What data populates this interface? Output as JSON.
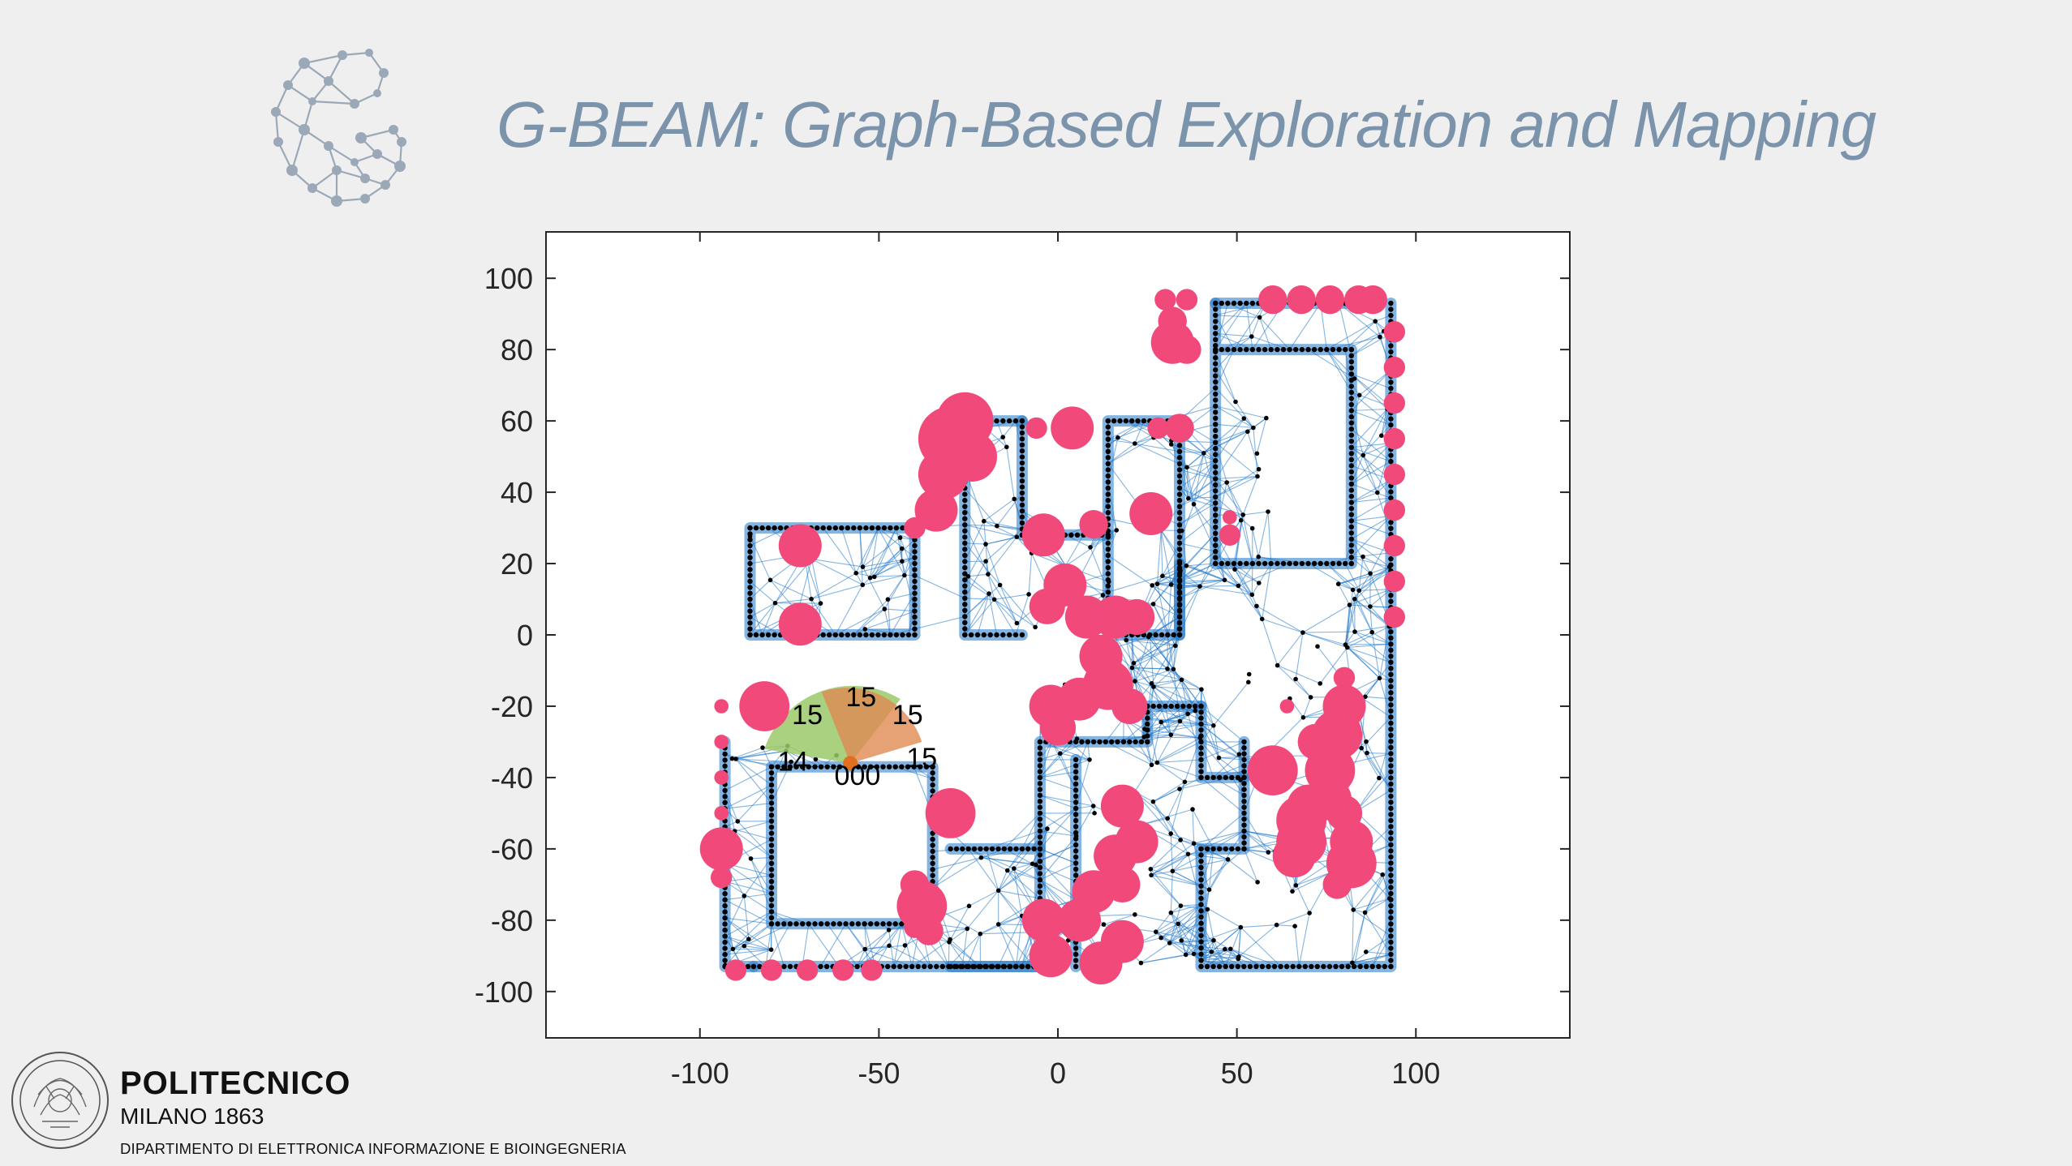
{
  "slide": {
    "title": "G-BEAM: Graph-Based Exploration and Mapping"
  },
  "colors": {
    "title": "#7b93ab",
    "graph_edges": "#1f77c8",
    "frontier_circles": "#f0497a",
    "obstacle_nodes": "#000000",
    "robot_sector": "#9ac96a",
    "robot_sector_orange": "#e08a52"
  },
  "chart_data": {
    "type": "scatter",
    "title": "",
    "xlabel": "",
    "ylabel": "",
    "xlim": [
      -143,
      143
    ],
    "ylim": [
      -113,
      113
    ],
    "xticks": [
      -100,
      -50,
      0,
      50,
      100
    ],
    "yticks": [
      100,
      80,
      60,
      40,
      20,
      0,
      -20,
      -40,
      -60,
      -80,
      -100
    ],
    "grid": false,
    "series": [
      {
        "kind": "walls",
        "polylines": [
          [
            [
              -86,
              30
            ],
            [
              -86,
              0
            ],
            [
              -40,
              0
            ],
            [
              -40,
              30
            ],
            [
              -86,
              30
            ]
          ],
          [
            [
              -26,
              60
            ],
            [
              -26,
              0
            ],
            [
              -10,
              0
            ]
          ],
          [
            [
              -10,
              60
            ],
            [
              -26,
              60
            ]
          ],
          [
            [
              -10,
              60
            ],
            [
              -10,
              28
            ],
            [
              14,
              28
            ]
          ],
          [
            [
              14,
              60
            ],
            [
              14,
              0
            ],
            [
              34,
              0
            ],
            [
              34,
              60
            ],
            [
              14,
              60
            ]
          ],
          [
            [
              44,
              93
            ],
            [
              44,
              20
            ],
            [
              82,
              20
            ],
            [
              82,
              80
            ],
            [
              44,
              80
            ]
          ],
          [
            [
              82,
              93
            ],
            [
              44,
              93
            ]
          ],
          [
            [
              34,
              20
            ],
            [
              34,
              0
            ]
          ],
          [
            [
              -93,
              -30
            ],
            [
              -93,
              -93
            ],
            [
              -85,
              -93
            ]
          ],
          [
            [
              -80,
              -37
            ],
            [
              -80,
              -81
            ],
            [
              -35,
              -81
            ],
            [
              -35,
              -37
            ],
            [
              -80,
              -37
            ]
          ],
          [
            [
              -30,
              -60
            ],
            [
              -5,
              -60
            ],
            [
              -5,
              -93
            ],
            [
              -85,
              -93
            ]
          ],
          [
            [
              -5,
              -60
            ],
            [
              -5,
              -30
            ],
            [
              25,
              -30
            ],
            [
              25,
              -20
            ],
            [
              40,
              -20
            ]
          ],
          [
            [
              5,
              -35
            ],
            [
              5,
              -93
            ]
          ],
          [
            [
              40,
              -20
            ],
            [
              40,
              -40
            ],
            [
              52,
              -40
            ],
            [
              52,
              -60
            ],
            [
              40,
              -60
            ],
            [
              40,
              -93
            ],
            [
              93,
              -93
            ],
            [
              93,
              93
            ]
          ],
          [
            [
              52,
              -40
            ],
            [
              52,
              -30
            ]
          ],
          [
            [
              -30,
              -93
            ],
            [
              -5,
              -93
            ]
          ]
        ]
      },
      {
        "kind": "frontier_circles",
        "points": [
          [
            30,
            94,
            3
          ],
          [
            36,
            94,
            3
          ],
          [
            32,
            88,
            4
          ],
          [
            32,
            82,
            6
          ],
          [
            36,
            80,
            4
          ],
          [
            60,
            94,
            4
          ],
          [
            68,
            94,
            4
          ],
          [
            76,
            94,
            4
          ],
          [
            84,
            94,
            4
          ],
          [
            88,
            94,
            4
          ],
          [
            94,
            85,
            3
          ],
          [
            94,
            75,
            3
          ],
          [
            94,
            65,
            3
          ],
          [
            94,
            55,
            3
          ],
          [
            94,
            45,
            3
          ],
          [
            94,
            35,
            3
          ],
          [
            94,
            25,
            3
          ],
          [
            94,
            15,
            3
          ],
          [
            94,
            5,
            3
          ],
          [
            -26,
            60,
            8
          ],
          [
            -30,
            55,
            9
          ],
          [
            -24,
            50,
            7
          ],
          [
            -32,
            45,
            7
          ],
          [
            -34,
            35,
            6
          ],
          [
            -40,
            30,
            3
          ],
          [
            -72,
            25,
            6
          ],
          [
            -72,
            3,
            6
          ],
          [
            -6,
            58,
            3
          ],
          [
            4,
            58,
            6
          ],
          [
            28,
            58,
            3
          ],
          [
            34,
            58,
            4
          ],
          [
            26,
            34,
            6
          ],
          [
            48,
            28,
            3
          ],
          [
            48,
            33,
            2
          ],
          [
            -4,
            28,
            6
          ],
          [
            10,
            31,
            4
          ],
          [
            2,
            14,
            6
          ],
          [
            -3,
            8,
            5
          ],
          [
            8,
            5,
            6
          ],
          [
            16,
            5,
            6
          ],
          [
            22,
            5,
            5
          ],
          [
            12,
            -6,
            6
          ],
          [
            14,
            -14,
            7
          ],
          [
            6,
            -18,
            6
          ],
          [
            -2,
            -20,
            6
          ],
          [
            0,
            -26,
            5
          ],
          [
            20,
            -20,
            5
          ],
          [
            -82,
            -20,
            7
          ],
          [
            -94,
            -20,
            2
          ],
          [
            -94,
            -30,
            2
          ],
          [
            -94,
            -40,
            2
          ],
          [
            -94,
            -50,
            2
          ],
          [
            -94,
            -60,
            6
          ],
          [
            -94,
            -68,
            3
          ],
          [
            -30,
            -50,
            7
          ],
          [
            -40,
            -70,
            4
          ],
          [
            -38,
            -76,
            7
          ],
          [
            -40,
            -82,
            3
          ],
          [
            -36,
            -83,
            4
          ],
          [
            -90,
            -94,
            3
          ],
          [
            -80,
            -94,
            3
          ],
          [
            -70,
            -94,
            3
          ],
          [
            -60,
            -94,
            3
          ],
          [
            -52,
            -94,
            3
          ],
          [
            -4,
            -80,
            6
          ],
          [
            -2,
            -90,
            6
          ],
          [
            6,
            -80,
            6
          ],
          [
            10,
            -72,
            6
          ],
          [
            16,
            -62,
            6
          ],
          [
            22,
            -58,
            6
          ],
          [
            18,
            -48,
            6
          ],
          [
            12,
            -92,
            6
          ],
          [
            18,
            -86,
            6
          ],
          [
            18,
            -70,
            5
          ],
          [
            60,
            -38,
            7
          ],
          [
            68,
            -52,
            7
          ],
          [
            68,
            -58,
            7
          ],
          [
            70,
            -48,
            6
          ],
          [
            76,
            -38,
            7
          ],
          [
            78,
            -28,
            7
          ],
          [
            80,
            -20,
            6
          ],
          [
            80,
            -12,
            3
          ],
          [
            80,
            -50,
            5
          ],
          [
            82,
            -58,
            6
          ],
          [
            82,
            -64,
            7
          ],
          [
            78,
            -70,
            4
          ],
          [
            76,
            -46,
            6
          ],
          [
            72,
            -30,
            5
          ],
          [
            66,
            -62,
            6
          ],
          [
            64,
            -20,
            2
          ]
        ]
      },
      {
        "kind": "robot_sensor_labels",
        "labels": [
          {
            "text": "15",
            "x": -55,
            "y": -18
          },
          {
            "text": "15",
            "x": -70,
            "y": -23
          },
          {
            "text": "15",
            "x": -42,
            "y": -23
          },
          {
            "text": "15",
            "x": -38,
            "y": -35
          },
          {
            "text": "14",
            "x": -74,
            "y": -36
          },
          {
            "text": "000",
            "x": -56,
            "y": -40
          }
        ]
      }
    ]
  },
  "footer": {
    "name": "POLITECNICO",
    "city": "MILANO 1863",
    "department": "DIPARTIMENTO DI ELETTRONICA INFORMAZIONE E BIOINGEGNERIA"
  }
}
